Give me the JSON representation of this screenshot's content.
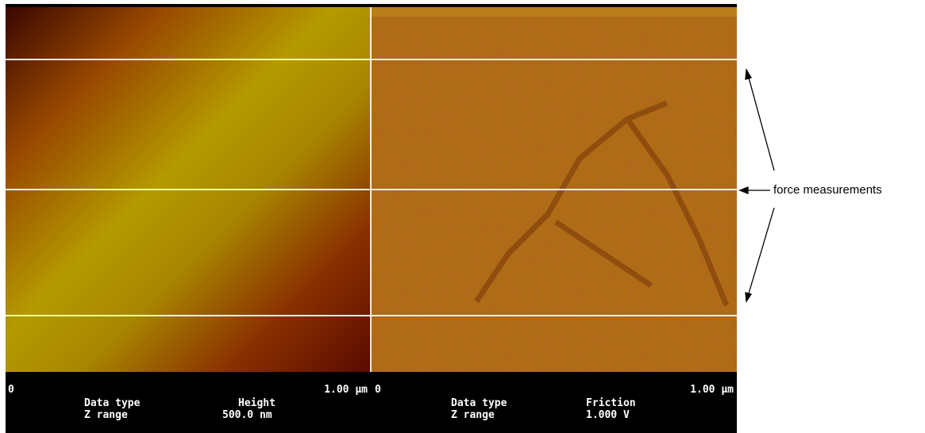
{
  "panels": [
    {
      "scale_start": "0",
      "scale_end": "1.00 μm",
      "data_type_label": "Data type",
      "data_type": "Height",
      "z_range_label": "Z range",
      "z_range": "500.0 nm"
    },
    {
      "scale_start": "0",
      "scale_end": "1.00 μm",
      "data_type_label": "Data type",
      "data_type": "Friction",
      "z_range_label": "Z range",
      "z_range": "1.000 V"
    }
  ],
  "annotation": "force measurements"
}
